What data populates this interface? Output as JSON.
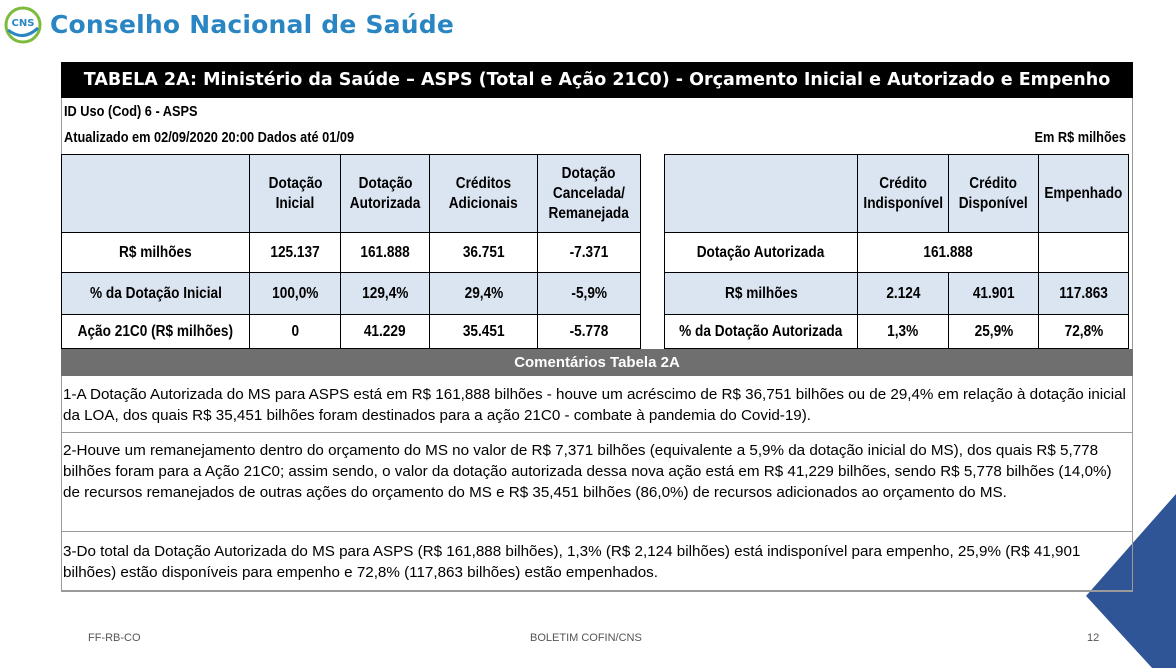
{
  "header": {
    "logo_text": "CNS",
    "brand": "Conselho Nacional de Saúde"
  },
  "title": "TABELA 2A: Ministério da Saúde – ASPS (Total e Ação 21C0) - Orçamento Inicial e Autorizado e Empenho",
  "meta": {
    "id": "ID Uso (Cod) 6 - ASPS",
    "updated": "Atualizado em 02/09/2020 20:00 Dados até 01/09",
    "unit": "Em R$ milhões"
  },
  "left_table": {
    "headers": [
      [
        "Dotação",
        "Inicial"
      ],
      [
        "Dotação",
        "Autorizada"
      ],
      [
        "Créditos",
        "Adicionais"
      ],
      [
        "Dotação",
        "Cancelada/",
        "Remanejada"
      ]
    ],
    "rows": [
      {
        "label": "R$ milhões",
        "values": [
          "125.137",
          "161.888",
          "36.751",
          "-7.371"
        ]
      },
      {
        "label": "% da Dotação Inicial",
        "values": [
          "100,0%",
          "129,4%",
          "29,4%",
          "-5,9%"
        ]
      },
      {
        "label": "Ação 21C0 (R$ milhões)",
        "values": [
          "0",
          "41.229",
          "35.451",
          "-5.778"
        ]
      }
    ]
  },
  "right_table": {
    "headers": [
      [
        "Crédito",
        "Indisponível"
      ],
      [
        "Crédito",
        "Disponível"
      ],
      [
        "Empenhado"
      ]
    ],
    "rows": [
      {
        "label": "Dotação Autorizada",
        "values": [
          "161.888"
        ]
      },
      {
        "label": "R$ milhões",
        "values": [
          "2.124",
          "41.901",
          "117.863"
        ]
      },
      {
        "label": "% da Dotação Autorizada",
        "values": [
          "1,3%",
          "25,9%",
          "72,8%"
        ]
      }
    ]
  },
  "comments": {
    "title": "Comentários Tabela 2A",
    "items": [
      "1-A Dotação Autorizada do MS para ASPS está em R$ 161,888 bilhões - houve um acréscimo de R$ 36,751 bilhões ou de 29,4% em relação à dotação inicial da LOA, dos quais R$ 35,451 bilhões foram destinados para a ação 21C0 - combate à pandemia do Covid-19).",
      "2-Houve um remanejamento dentro do orçamento do MS no valor de R$ 7,371 bilhões (equivalente a 5,9% da dotação inicial do MS), dos quais R$ 5,778 bilhões foram para a Ação 21C0; assim sendo, o valor da dotação autorizada dessa nova ação está em R$ 41,229 bilhões, sendo R$ 5,778 bilhões (14,0%) de recursos remanejados de outras ações do orçamento do MS e R$ 35,451 bilhões (86,0%) de recursos adicionados ao orçamento do MS.",
      "3-Do total da Dotação Autorizada do MS para ASPS (R$ 161,888 bilhões), 1,3% (R$ 2,124 bilhões) está indisponível para empenho, 25,9% (R$ 41,901 bilhões) estão disponíveis para empenho e 72,8% (117,863 bilhões) estão empenhados."
    ]
  },
  "footer": {
    "left": "FF-RB-CO",
    "center": "BOLETIM COFIN/CNS",
    "page": "12"
  },
  "colors": {
    "brand": "#2a86c2",
    "header_fill": "#dbe5f1",
    "comment_bar": "#6f6f6f",
    "accent_shape": "#2f5597"
  }
}
